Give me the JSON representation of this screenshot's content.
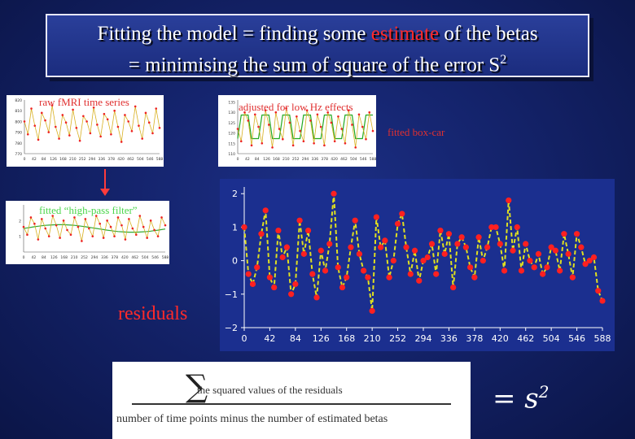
{
  "title": {
    "line1_before": "Fitting the model = finding some ",
    "line1_highlight": "estimate",
    "line1_after": " of the betas",
    "line2": "= minimising the sum of square of the error S",
    "line2_sup": "2"
  },
  "labels": {
    "raw": "raw fMRI time series",
    "adjusted": "adjusted for low Hz effects",
    "boxcar": "fitted box-car",
    "highpass": "fitted “high-pass filter”",
    "residuals": "residuals"
  },
  "formula": {
    "sigma": "∑",
    "numerator": "the squared values of the residuals",
    "denominator": "number of time points minus the number of estimated betas",
    "equals": "= s",
    "equals_sup": "2"
  },
  "colors": {
    "background": "#14236b",
    "highlight": "#ff2a2a",
    "residual_line": "#e0e020",
    "residual_points": "#ff2020"
  },
  "chart_data": [
    {
      "type": "line",
      "title": "raw fMRI time series",
      "x_ticks": [
        0,
        42,
        84,
        126,
        168,
        210,
        252,
        294,
        336,
        378,
        420,
        462,
        504,
        546,
        588
      ],
      "y_ticks": [
        770,
        780,
        790,
        800,
        810,
        820
      ],
      "ylim": [
        770,
        820
      ],
      "series": [
        {
          "name": "",
          "values": [
            800,
            788,
            812,
            796,
            783,
            808,
            801,
            790,
            815,
            795,
            784,
            806,
            799,
            787,
            811,
            794,
            782,
            805,
            800,
            789,
            813,
            797,
            786,
            807,
            802,
            788,
            810,
            795,
            781,
            806,
            800,
            791,
            814,
            796,
            784,
            808,
            799,
            789,
            812,
            794
          ]
        }
      ]
    },
    {
      "type": "line",
      "title": "adjusted for low Hz effects",
      "x_ticks": [
        0,
        42,
        84,
        126,
        168,
        210,
        252,
        294,
        336,
        378,
        420,
        462,
        504,
        546,
        588
      ],
      "y_ticks": [
        110,
        115,
        120,
        125,
        130,
        135
      ],
      "ylim": [
        110,
        136
      ],
      "series": [
        {
          "name": "",
          "values": [
            122,
            116,
            130,
            126,
            114,
            129,
            123,
            115,
            131,
            124,
            113,
            130,
            122,
            117,
            132,
            125,
            114,
            128,
            121,
            116,
            131,
            126,
            115,
            129,
            123,
            114,
            130,
            125,
            116,
            128,
            122,
            115,
            131,
            124,
            113,
            129,
            123,
            117,
            130,
            121
          ]
        }
      ]
    },
    {
      "type": "line",
      "title": "fitted “high-pass filter”",
      "x_ticks": [
        0,
        42,
        84,
        126,
        168,
        210,
        252,
        294,
        336,
        378,
        420,
        462,
        504,
        546,
        588
      ],
      "y_ticks": [
        1,
        2
      ],
      "ylim": [
        0,
        3
      ],
      "series": [
        {
          "name": "",
          "values": [
            1.6,
            1.1,
            2.2,
            1.8,
            0.8,
            2.1,
            1.5,
            1.0,
            2.3,
            1.7,
            0.9,
            2.0,
            1.4,
            1.1,
            2.2,
            1.6,
            0.7,
            2.1,
            1.5,
            1.0,
            2.3,
            1.8,
            0.9,
            2.0,
            1.6,
            1.0,
            2.2,
            1.7,
            0.8,
            2.1,
            1.5,
            1.1,
            2.3,
            1.6,
            0.9,
            2.0,
            1.4,
            1.0,
            2.2,
            1.7
          ]
        }
      ]
    },
    {
      "type": "line",
      "title": "residuals",
      "x_ticks": [
        0,
        42,
        84,
        126,
        168,
        210,
        252,
        294,
        336,
        378,
        420,
        462,
        504,
        546,
        588
      ],
      "y_ticks": [
        2,
        1,
        0,
        -1,
        -2
      ],
      "ylim": [
        -2,
        2.2
      ],
      "series": [
        {
          "name": "",
          "x": [
            0,
            7,
            14,
            21,
            28,
            35,
            42,
            49,
            56,
            63,
            70,
            77,
            84,
            91,
            98,
            105,
            112,
            119,
            126,
            133,
            140,
            147,
            154,
            161,
            168,
            175,
            182,
            189,
            196,
            203,
            210,
            217,
            224,
            231,
            238,
            245,
            252,
            259,
            266,
            273,
            280,
            287,
            294,
            301,
            308,
            315,
            322,
            329,
            336,
            343,
            350,
            357,
            364,
            371,
            378,
            385,
            392,
            399,
            406,
            413,
            420,
            427,
            434,
            441,
            448,
            455,
            462,
            469,
            476,
            483,
            490,
            497,
            504,
            511,
            518,
            525,
            532,
            539,
            546,
            553,
            560,
            567,
            574,
            581,
            588
          ],
          "values": [
            1.0,
            -0.4,
            -0.7,
            -0.2,
            0.8,
            1.5,
            -0.5,
            -0.8,
            0.9,
            0.1,
            0.4,
            -1.0,
            -0.7,
            1.2,
            0.2,
            0.9,
            -0.4,
            -1.1,
            0.3,
            -0.3,
            0.5,
            2.0,
            -0.2,
            -0.8,
            -0.5,
            0.4,
            1.2,
            0.2,
            -0.3,
            -0.5,
            -1.5,
            1.3,
            0.4,
            0.6,
            -0.5,
            0.0,
            1.1,
            1.4,
            0.4,
            -0.4,
            0.3,
            -0.6,
            0.0,
            0.1,
            0.5,
            -0.4,
            0.9,
            0.2,
            0.8,
            -0.8,
            0.5,
            0.7,
            0.4,
            -0.2,
            -0.5,
            0.7,
            0.0,
            0.4,
            1.0,
            1.0,
            0.5,
            -0.3,
            1.8,
            0.3,
            1.0,
            -0.3,
            0.5,
            0.0,
            -0.2,
            0.2,
            -0.4,
            -0.2,
            0.4,
            0.3,
            -0.3,
            0.8,
            0.2,
            -0.5,
            0.8,
            0.4,
            -0.1,
            0.0,
            0.1,
            -0.9,
            -1.2
          ]
        }
      ]
    }
  ]
}
